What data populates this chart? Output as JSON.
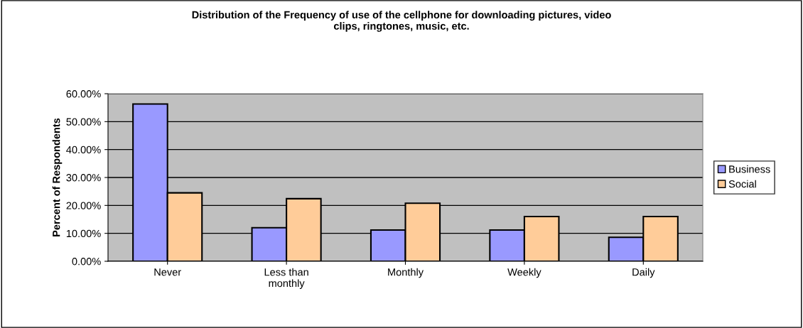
{
  "chart_data": {
    "type": "bar",
    "title": "Distribution of the Frequency of use of the cellphone for downloading pictures, video\nclips, ringtones, music, etc.",
    "ylabel": "Percent of Respondents",
    "categories": [
      "Never",
      "Less than\nmonthly",
      "Monthly",
      "Weekly",
      "Daily"
    ],
    "series": [
      {
        "name": "Business",
        "color": "#9999ff",
        "values": [
          56.3,
          12.0,
          11.2,
          11.2,
          8.6
        ]
      },
      {
        "name": "Social",
        "color": "#ffcc99",
        "values": [
          24.5,
          22.4,
          20.8,
          16.0,
          16.0
        ]
      }
    ],
    "ylim": [
      0,
      60
    ],
    "yticks": [
      {
        "value": 0,
        "label": "0.00%"
      },
      {
        "value": 10,
        "label": "10.00%"
      },
      {
        "value": 20,
        "label": "20.00%"
      },
      {
        "value": 30,
        "label": "30.00%"
      },
      {
        "value": 40,
        "label": "40.00%"
      },
      {
        "value": 50,
        "label": "50.00%"
      },
      {
        "value": 60,
        "label": "60.00%"
      }
    ],
    "grid": "y",
    "legend": "right"
  }
}
